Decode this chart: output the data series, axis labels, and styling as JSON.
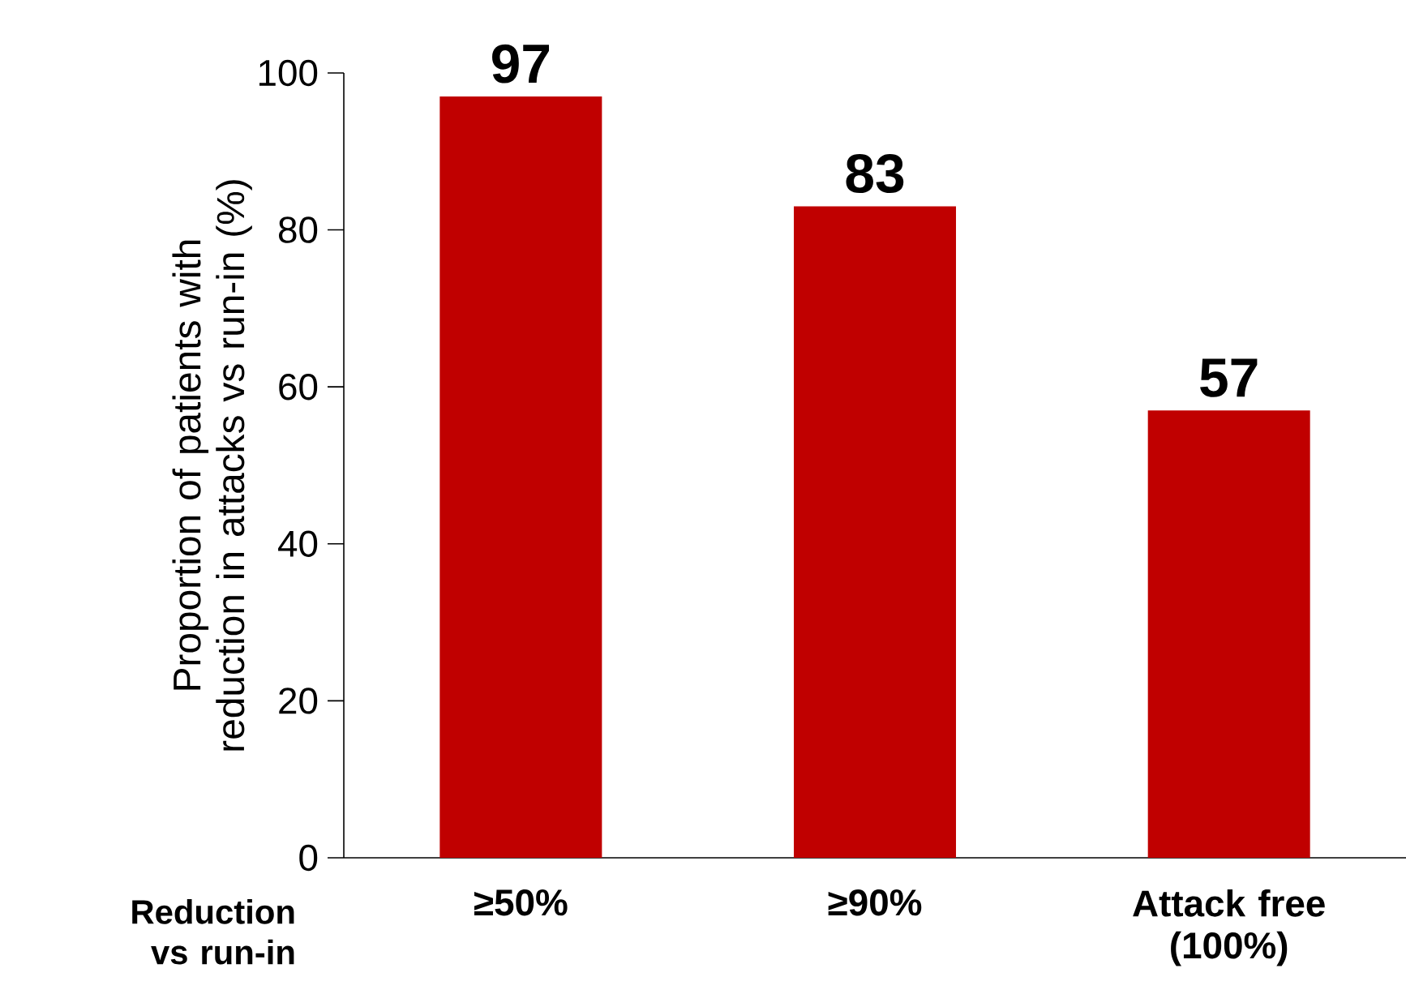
{
  "chart_data": {
    "type": "bar",
    "xlabel": "Reduction vs run-in",
    "ylabel": "Proportion of patients with reduction in attacks vs run-in (%)",
    "categories": [
      "≥50%",
      "≥90%",
      "Attack free (100%)"
    ],
    "values": [
      97,
      83,
      57
    ],
    "color": "#c00000",
    "ylim": [
      0,
      100
    ],
    "yticks": [
      0,
      20,
      40,
      60,
      80,
      100
    ],
    "data_labels": true,
    "grid": false
  }
}
